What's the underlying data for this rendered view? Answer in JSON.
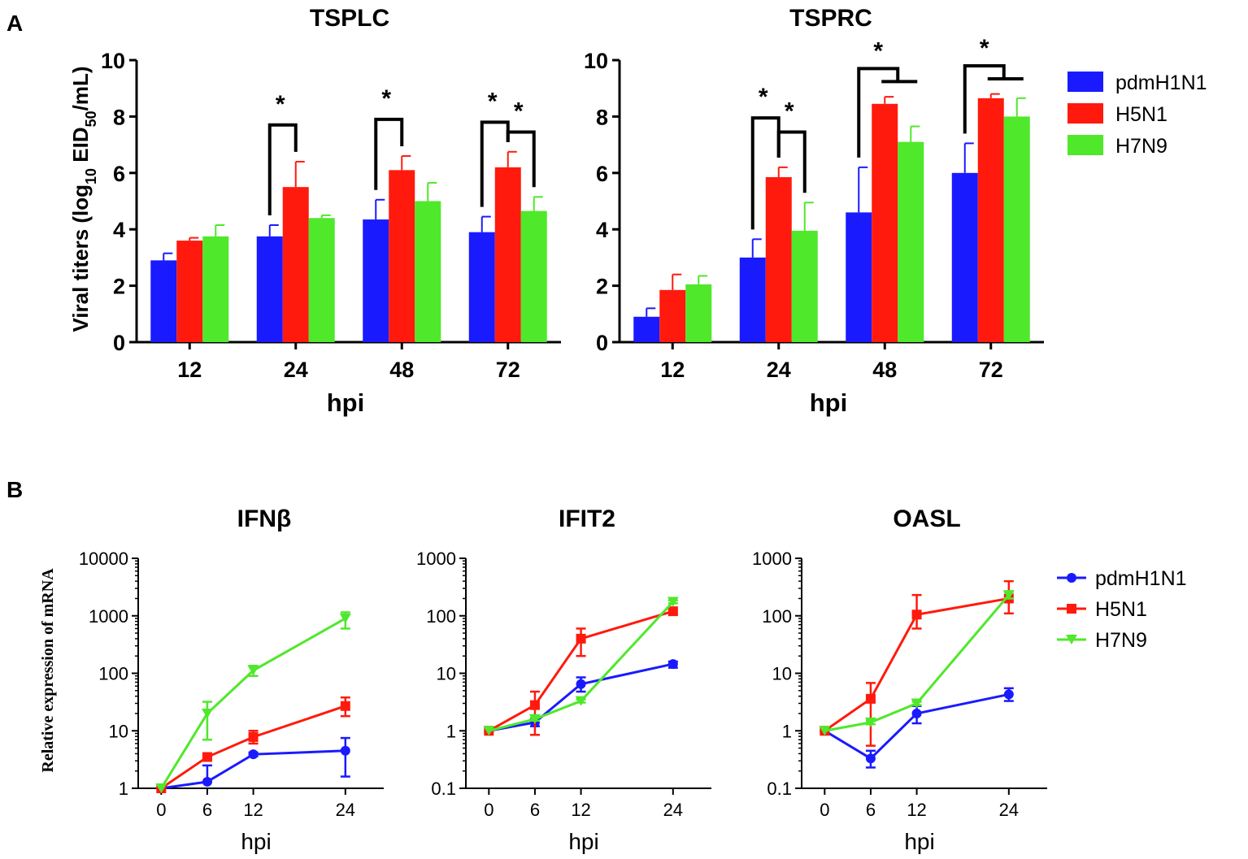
{
  "panels": {
    "a": "A",
    "b": "B"
  },
  "colors": {
    "pdmH1N1": "#1a1aff",
    "H5N1": "#ff1a0d",
    "H7N9": "#4fe82b"
  },
  "panel_a": {
    "ylabel_main": "Viral titers (log",
    "ylabel_sub": "10",
    "ylabel_mid": " EID",
    "ylabel_sub2": "50",
    "ylabel_end": "/mL)"
  },
  "panel_b": {
    "ylabel": "Relative expression of mRNA"
  },
  "legend_a": [
    "pdmH1N1",
    "H5N1",
    "H7N9"
  ],
  "legend_b": [
    "pdmH1N1",
    "H5N1",
    "H7N9"
  ],
  "significance_mark": "*",
  "chart_data": [
    {
      "id": "tsplc",
      "type": "bar",
      "title": "TSPLC",
      "xlabel": "hpi",
      "ylabel": "Viral titers (log10 EID50/mL)",
      "categories": [
        "12",
        "24",
        "48",
        "72"
      ],
      "ylim": [
        0,
        10
      ],
      "yticks": [
        "0",
        "2",
        "4",
        "6",
        "8",
        "10"
      ],
      "series": [
        {
          "name": "pdmH1N1",
          "values": [
            2.9,
            3.75,
            4.35,
            3.9
          ],
          "errors": [
            0.25,
            0.4,
            0.7,
            0.55
          ]
        },
        {
          "name": "H5N1",
          "values": [
            3.6,
            5.5,
            6.1,
            6.2
          ],
          "errors": [
            0.1,
            0.9,
            0.5,
            0.55
          ]
        },
        {
          "name": "H7N9",
          "values": [
            3.75,
            4.4,
            5.0,
            4.65
          ],
          "errors": [
            0.4,
            0.1,
            0.65,
            0.5
          ]
        }
      ],
      "annotations": [
        {
          "category": "24",
          "type": "pair",
          "from": 0,
          "to": 1,
          "label": "*"
        },
        {
          "category": "48",
          "type": "pair",
          "from": 0,
          "to": 1,
          "label": "*"
        },
        {
          "category": "72",
          "type": "pair",
          "from": 0,
          "to": 1,
          "label": "*"
        },
        {
          "category": "72",
          "type": "pair",
          "from": 1,
          "to": 2,
          "label": "*"
        }
      ]
    },
    {
      "id": "tsprc",
      "type": "bar",
      "title": "TSPRC",
      "xlabel": "hpi",
      "ylabel": "Viral titers (log10 EID50/mL)",
      "categories": [
        "12",
        "24",
        "48",
        "72"
      ],
      "ylim": [
        0,
        10
      ],
      "yticks": [
        "0",
        "2",
        "4",
        "6",
        "8",
        "10"
      ],
      "series": [
        {
          "name": "pdmH1N1",
          "values": [
            0.9,
            3.0,
            4.6,
            6.0
          ],
          "errors": [
            0.3,
            0.65,
            1.6,
            1.05
          ]
        },
        {
          "name": "H5N1",
          "values": [
            1.85,
            5.85,
            8.45,
            8.65
          ],
          "errors": [
            0.55,
            0.35,
            0.25,
            0.15
          ]
        },
        {
          "name": "H7N9",
          "values": [
            2.05,
            3.95,
            7.1,
            8.0
          ],
          "errors": [
            0.3,
            1.0,
            0.55,
            0.65
          ]
        }
      ],
      "annotations": [
        {
          "category": "24",
          "type": "pair",
          "from": 0,
          "to": 1,
          "label": "*"
        },
        {
          "category": "24",
          "type": "pair",
          "from": 1,
          "to": 2,
          "label": "*"
        },
        {
          "category": "48",
          "type": "group",
          "from": 0,
          "to": [
            1,
            2
          ],
          "label": "*"
        },
        {
          "category": "72",
          "type": "group",
          "from": 0,
          "to": [
            1,
            2
          ],
          "label": "*"
        }
      ]
    },
    {
      "id": "ifnb",
      "type": "line",
      "title": "IFNβ",
      "xlabel": "hpi",
      "ylabel": "Relative expression of mRNA",
      "yscale": "log",
      "x": [
        0,
        6,
        12,
        24
      ],
      "xticks": [
        "0",
        "6",
        "12",
        "24"
      ],
      "ylim": [
        1,
        10000
      ],
      "yticks": [
        "1",
        "10",
        "100",
        "1000",
        "10000"
      ],
      "series": [
        {
          "name": "pdmH1N1",
          "marker": "circle",
          "values": [
            1,
            1.3,
            3.9,
            4.5
          ],
          "err_low": [
            1,
            1.3,
            3.6,
            1.6
          ],
          "err_high": [
            1,
            2.5,
            4.2,
            7.5
          ]
        },
        {
          "name": "H5N1",
          "marker": "square",
          "values": [
            1,
            3.5,
            7.8,
            27
          ],
          "err_low": [
            1,
            3.3,
            6.0,
            18
          ],
          "err_high": [
            1,
            3.7,
            10,
            38
          ]
        },
        {
          "name": "H7N9",
          "marker": "triangle-down",
          "values": [
            1,
            20,
            112,
            900
          ],
          "err_low": [
            1,
            7,
            90,
            600
          ],
          "err_high": [
            1,
            32,
            135,
            1150
          ]
        }
      ]
    },
    {
      "id": "ifit2",
      "type": "line",
      "title": "IFIT2",
      "xlabel": "hpi",
      "ylabel": "Relative expression of mRNA",
      "yscale": "log",
      "x": [
        0,
        6,
        12,
        24
      ],
      "xticks": [
        "0",
        "6",
        "12",
        "24"
      ],
      "ylim": [
        0.1,
        1000
      ],
      "yticks": [
        "0.1",
        "1",
        "10",
        "100",
        "1000"
      ],
      "series": [
        {
          "name": "pdmH1N1",
          "marker": "circle",
          "values": [
            1,
            1.4,
            6.5,
            14.5
          ],
          "err_low": [
            1,
            1.2,
            4.8,
            12.5
          ],
          "err_high": [
            1,
            1.6,
            8.5,
            16
          ]
        },
        {
          "name": "H5N1",
          "marker": "square",
          "values": [
            1,
            2.8,
            40,
            120
          ],
          "err_low": [
            1,
            0.85,
            20,
            110
          ],
          "err_high": [
            1,
            4.8,
            60,
            130
          ]
        },
        {
          "name": "H7N9",
          "marker": "triangle-down",
          "values": [
            1,
            1.6,
            3.3,
            175
          ],
          "err_low": [
            1,
            1.5,
            3.1,
            165
          ],
          "err_high": [
            1,
            1.7,
            3.5,
            185
          ]
        }
      ]
    },
    {
      "id": "oasl",
      "type": "line",
      "title": "OASL",
      "xlabel": "hpi",
      "ylabel": "Relative expression of mRNA",
      "yscale": "log",
      "x": [
        0,
        6,
        12,
        24
      ],
      "xticks": [
        "0",
        "6",
        "12",
        "24"
      ],
      "ylim": [
        0.1,
        1000
      ],
      "yticks": [
        "0.1",
        "1",
        "10",
        "100",
        "1000"
      ],
      "series": [
        {
          "name": "pdmH1N1",
          "marker": "circle",
          "values": [
            1,
            0.33,
            2.0,
            4.3
          ],
          "err_low": [
            1,
            0.23,
            1.35,
            3.3
          ],
          "err_high": [
            1,
            0.45,
            2.7,
            5.5
          ]
        },
        {
          "name": "H5N1",
          "marker": "square",
          "values": [
            1,
            3.6,
            105,
            200
          ],
          "err_low": [
            1,
            0.55,
            60,
            110
          ],
          "err_high": [
            1,
            6.8,
            230,
            400
          ]
        },
        {
          "name": "H7N9",
          "marker": "triangle-down",
          "values": [
            1,
            1.4,
            3.0,
            230
          ],
          "err_low": [
            1,
            1.3,
            2.8,
            200
          ],
          "err_high": [
            1,
            1.5,
            3.2,
            260
          ]
        }
      ]
    }
  ]
}
